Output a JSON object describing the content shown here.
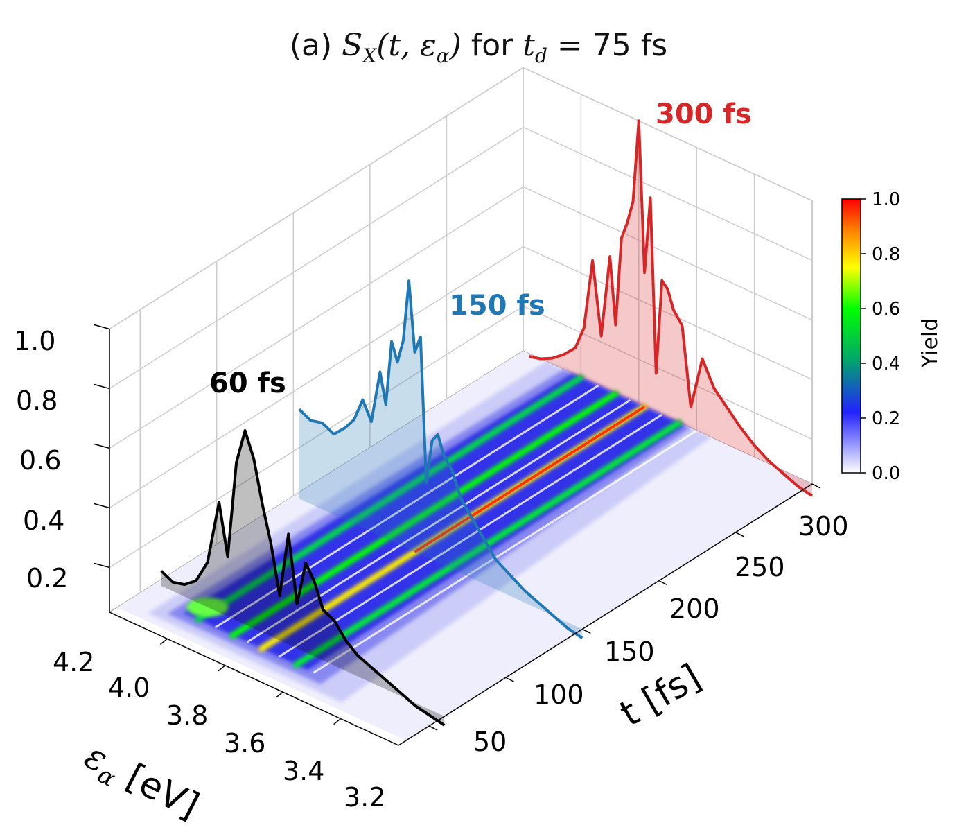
{
  "title_prefix": "(a) ",
  "title_math": "S_X(t, ε_α) for t_d = 75 fs",
  "title_symbol_S": "S",
  "title_sub_X": "X",
  "title_args": "(t, ε",
  "title_sub_alpha": "α",
  "title_close": ")",
  "title_for": " for ",
  "title_t": "t",
  "title_sub_d": "d",
  "title_eq": " = 75 fs",
  "chart_data": {
    "type": "surface3d",
    "x_axis": {
      "label": "t [fs]",
      "ticks": [
        50,
        100,
        150,
        200,
        250,
        300
      ],
      "range": [
        30,
        300
      ]
    },
    "y_axis": {
      "label_symbol": "ε",
      "label_sub": "α",
      "label_unit": " [eV]",
      "ticks": [
        "4.2",
        "4.0",
        "3.8",
        "3.6",
        "3.4",
        "3.2"
      ],
      "range": [
        3.2,
        4.2
      ]
    },
    "z_axis": {
      "ticks": [
        "0.2",
        "0.4",
        "0.6",
        "0.8",
        "1.0"
      ],
      "range": [
        0.05,
        1.0
      ]
    },
    "colorbar": {
      "label": "Yield",
      "ticks": [
        "0.0",
        "0.2",
        "0.4",
        "0.6",
        "0.8",
        "1.0"
      ],
      "range": [
        0,
        1
      ],
      "colormap": [
        "#ffffff",
        "#0000ff",
        "#00ff00",
        "#ffff00",
        "#ff0000"
      ]
    },
    "ridges_eV": [
      4.0,
      3.88,
      3.78,
      3.66
    ],
    "series": [
      {
        "name": "60 fs",
        "t": 60,
        "color": "#000000",
        "energies": [
          4.18,
          4.14,
          4.1,
          4.06,
          4.02,
          3.98,
          3.95,
          3.92,
          3.89,
          3.86,
          3.83,
          3.8,
          3.77,
          3.74,
          3.71,
          3.68,
          3.65,
          3.62,
          3.58,
          3.54,
          3.5,
          3.45,
          3.4,
          3.35,
          3.3,
          3.25,
          3.2
        ],
        "values": [
          0.1,
          0.08,
          0.09,
          0.12,
          0.2,
          0.42,
          0.25,
          0.58,
          0.7,
          0.62,
          0.48,
          0.36,
          0.2,
          0.42,
          0.2,
          0.35,
          0.3,
          0.22,
          0.2,
          0.15,
          0.12,
          0.1,
          0.08,
          0.06,
          0.04,
          0.03,
          0.02
        ]
      },
      {
        "name": "150 fs",
        "t": 150,
        "color": "#1f77b4",
        "energies": [
          4.18,
          4.14,
          4.1,
          4.06,
          4.02,
          3.99,
          3.96,
          3.93,
          3.9,
          3.88,
          3.86,
          3.84,
          3.82,
          3.8,
          3.78,
          3.76,
          3.74,
          3.72,
          3.7,
          3.68,
          3.65,
          3.62,
          3.58,
          3.54,
          3.5,
          3.45,
          3.4,
          3.35,
          3.3,
          3.25,
          3.2
        ],
        "values": [
          0.35,
          0.33,
          0.34,
          0.32,
          0.36,
          0.4,
          0.48,
          0.42,
          0.6,
          0.5,
          0.72,
          0.66,
          0.74,
          0.95,
          0.72,
          0.78,
          0.3,
          0.45,
          0.48,
          0.42,
          0.38,
          0.3,
          0.25,
          0.2,
          0.15,
          0.12,
          0.09,
          0.07,
          0.05,
          0.03,
          0.02
        ]
      },
      {
        "name": "300 fs",
        "t": 300,
        "color": "#d62728",
        "energies": [
          4.18,
          4.14,
          4.1,
          4.06,
          4.02,
          3.99,
          3.96,
          3.93,
          3.9,
          3.88,
          3.86,
          3.84,
          3.82,
          3.8,
          3.78,
          3.76,
          3.74,
          3.72,
          3.7,
          3.68,
          3.65,
          3.62,
          3.58,
          3.54,
          3.5,
          3.45,
          3.4,
          3.35,
          3.3,
          3.25,
          3.2
        ],
        "values": [
          0.04,
          0.05,
          0.07,
          0.1,
          0.14,
          0.22,
          0.46,
          0.22,
          0.5,
          0.28,
          0.58,
          0.64,
          0.72,
          1.0,
          0.5,
          0.76,
          0.18,
          0.5,
          0.48,
          0.42,
          0.38,
          0.12,
          0.3,
          0.22,
          0.18,
          0.13,
          0.09,
          0.06,
          0.04,
          0.02,
          0.01
        ]
      }
    ]
  }
}
